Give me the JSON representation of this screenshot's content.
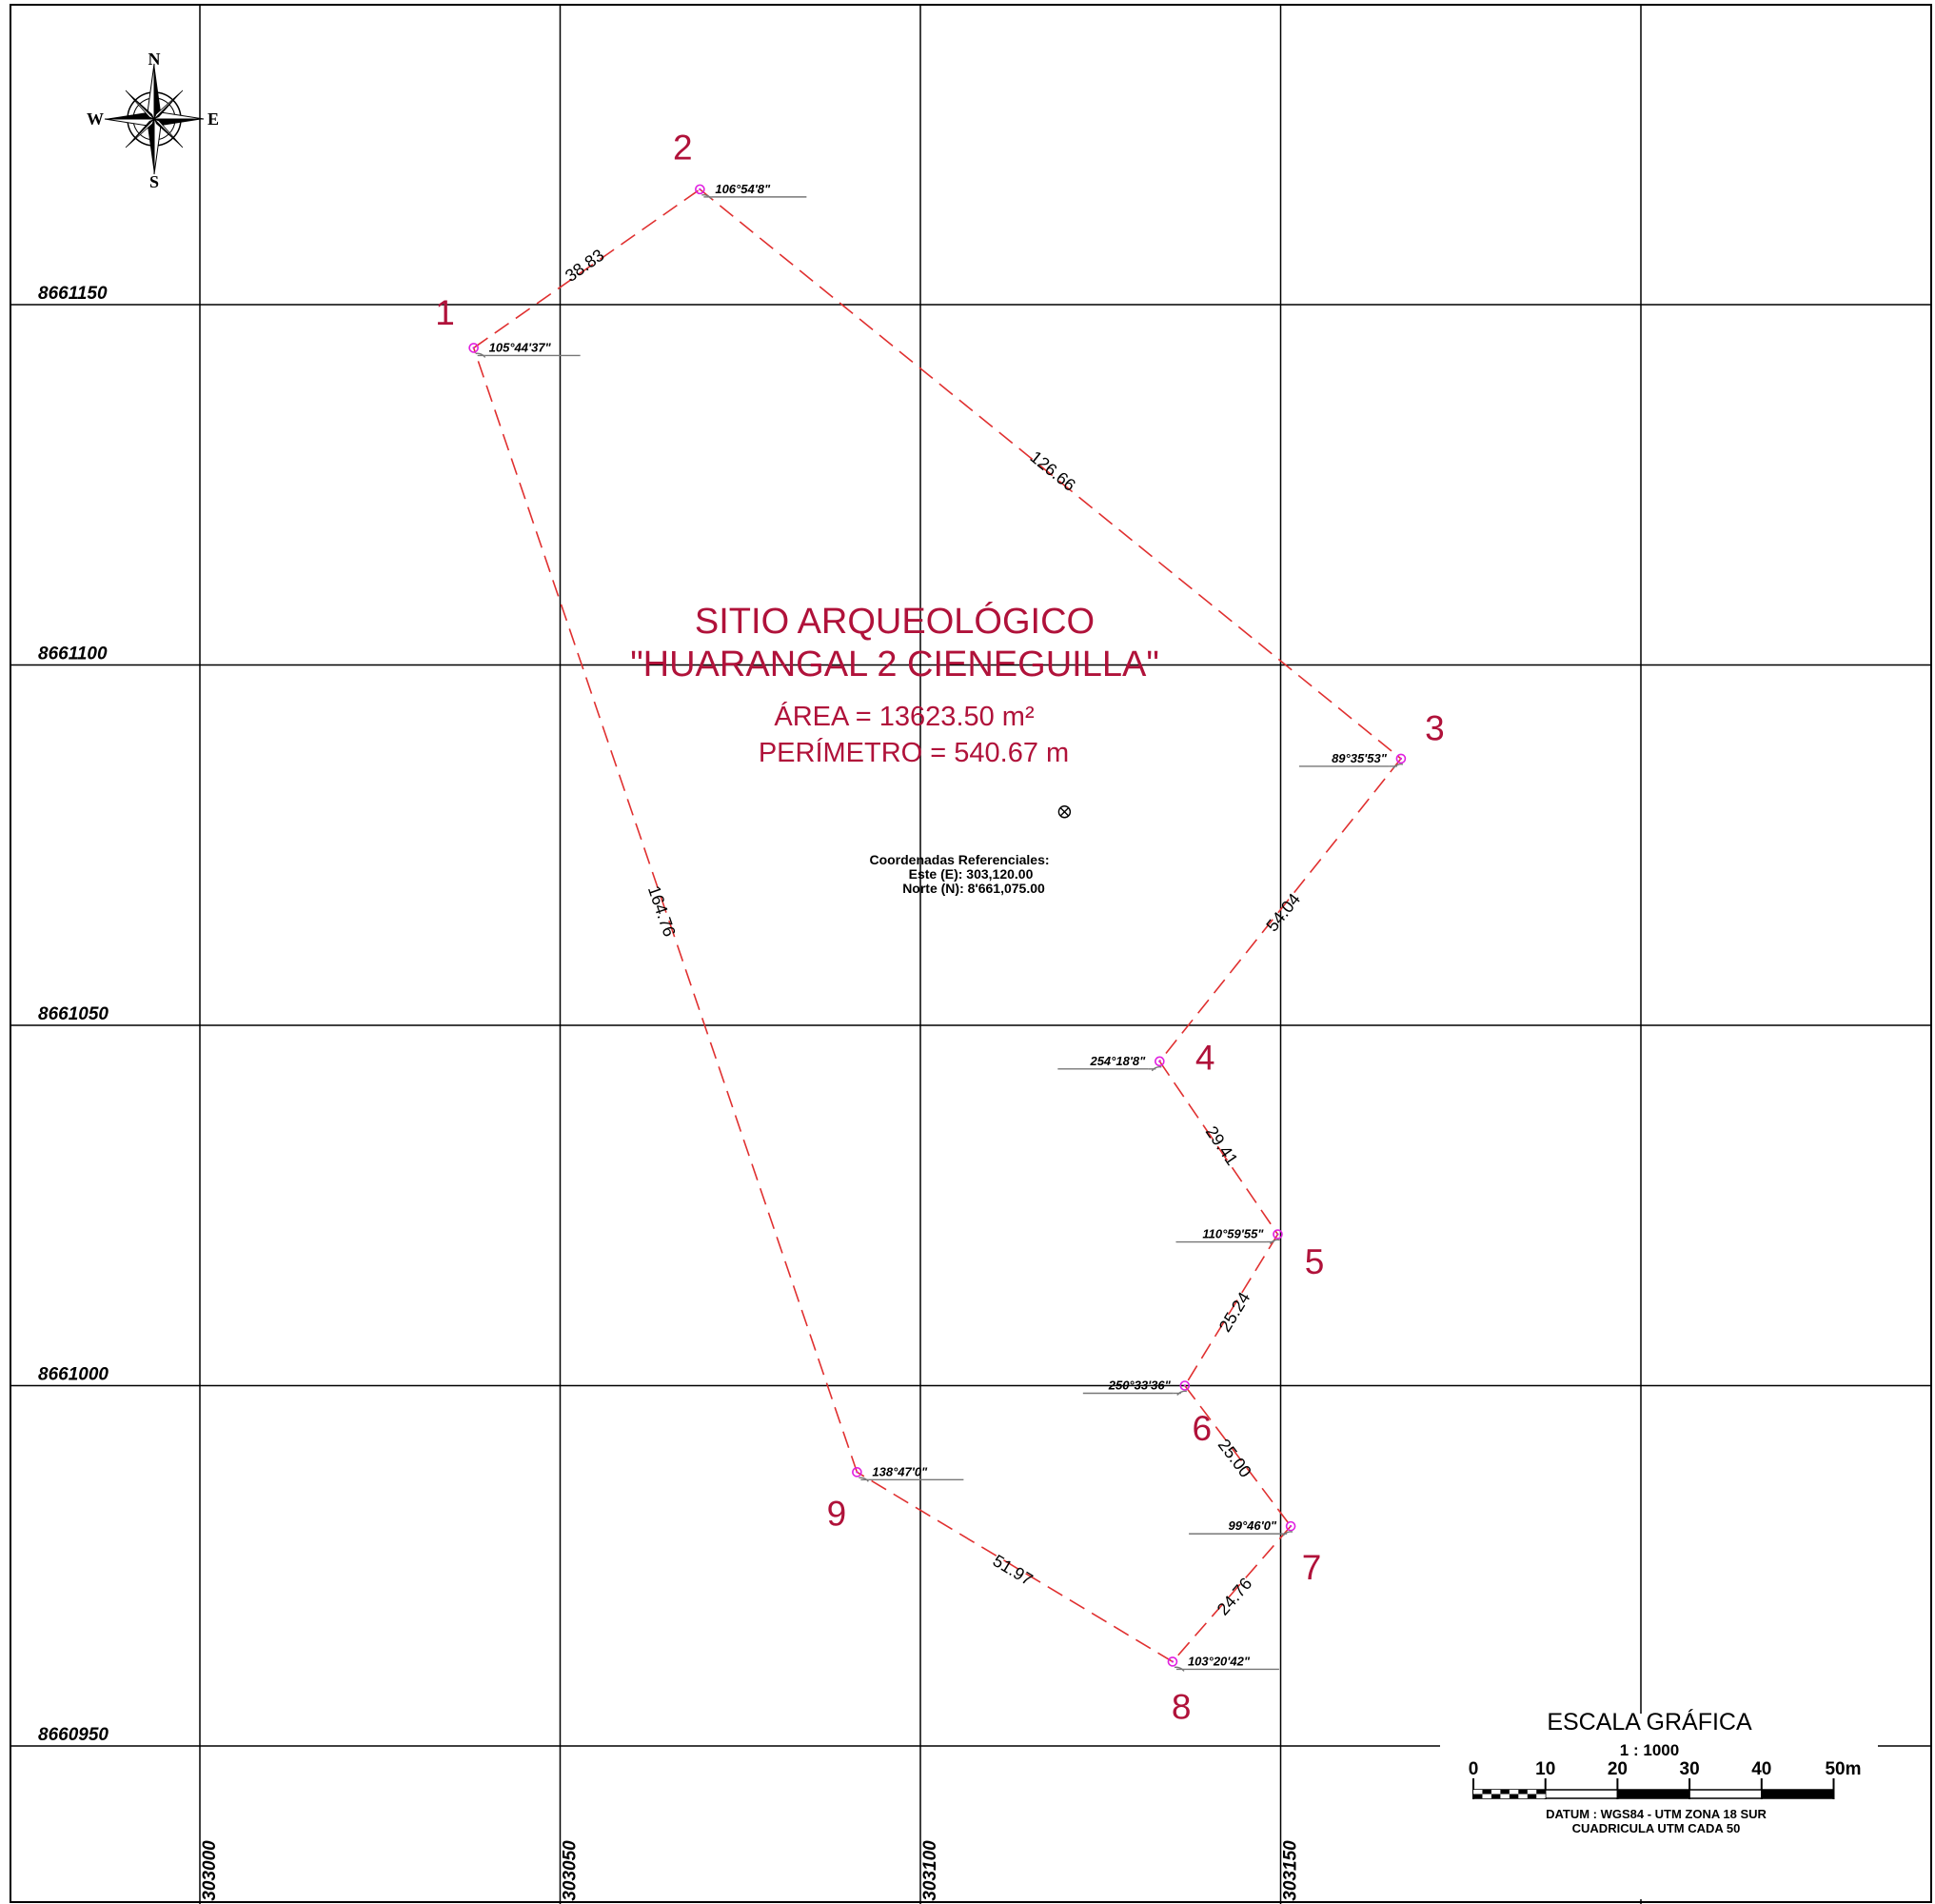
{
  "map": {
    "title_line1": "SITIO ARQUEOLÓGICO",
    "title_line2": "\"HUARANGAL 2 CIENEGUILLA\"",
    "area": "ÁREA = 13623.50 m²",
    "perimeter": "PERÍMETRO = 540.67 m",
    "reference": {
      "heading": "Coordenadas Referenciales:",
      "este": "Este (E): 303,120.00",
      "norte": "Norte (N): 8'661,075.00",
      "east": 303120,
      "north": 8661075
    },
    "grid": {
      "eastings": [
        303000,
        303050,
        303100,
        303150
      ],
      "northings": [
        8661150,
        8661100,
        8661050,
        8661000,
        8660950
      ],
      "easting_labels": [
        "303000",
        "303050",
        "303100",
        "303150"
      ],
      "northing_labels": [
        "8661150",
        "8661100",
        "8661050",
        "8661000",
        "8660950"
      ]
    },
    "compass": {
      "n": "N",
      "s": "S",
      "e": "E",
      "w": "W"
    },
    "vertices": [
      {
        "label": "1",
        "angle": "105°44'37\"",
        "east": 303038.0,
        "north": 8661144.0
      },
      {
        "label": "2",
        "angle": "106°54'8\"",
        "east": 303069.4,
        "north": 8661166.0
      },
      {
        "label": "3",
        "angle": "89°35'53\"",
        "east": 303166.7,
        "north": 8661087.0
      },
      {
        "label": "4",
        "angle": "254°18'8\"",
        "east": 303133.2,
        "north": 8661045.0
      },
      {
        "label": "5",
        "angle": "110°59'55\"",
        "east": 303149.6,
        "north": 8661021.0
      },
      {
        "label": "6",
        "angle": "250°33'36\"",
        "east": 303136.7,
        "north": 8661000.0
      },
      {
        "label": "7",
        "angle": "99°46'0\"",
        "east": 303151.4,
        "north": 8660980.5
      },
      {
        "label": "8",
        "angle": "103°20'42\"",
        "east": 303135.0,
        "north": 8660961.7
      },
      {
        "label": "9",
        "angle": "138°47'0\"",
        "east": 303091.2,
        "north": 8660988.0
      }
    ],
    "distances": [
      "38.83",
      "126.66",
      "54.04",
      "29.41",
      "25.24",
      "25.00",
      "24.76",
      "51.97",
      "164.76"
    ]
  },
  "scale_bar": {
    "title": "ESCALA GRÁFICA",
    "ratio": "1 : 1000",
    "ticks": [
      "0",
      "10",
      "20",
      "30",
      "40",
      "50"
    ],
    "unit": "m",
    "datum": "DATUM : WGS84 - UTM ZONA 18 SUR",
    "grid_note": "CUADRICULA UTM CADA 50"
  },
  "colors": {
    "polygon": "#e03030",
    "labels": "#b0123a",
    "vertex_marker": "#e020e0"
  }
}
